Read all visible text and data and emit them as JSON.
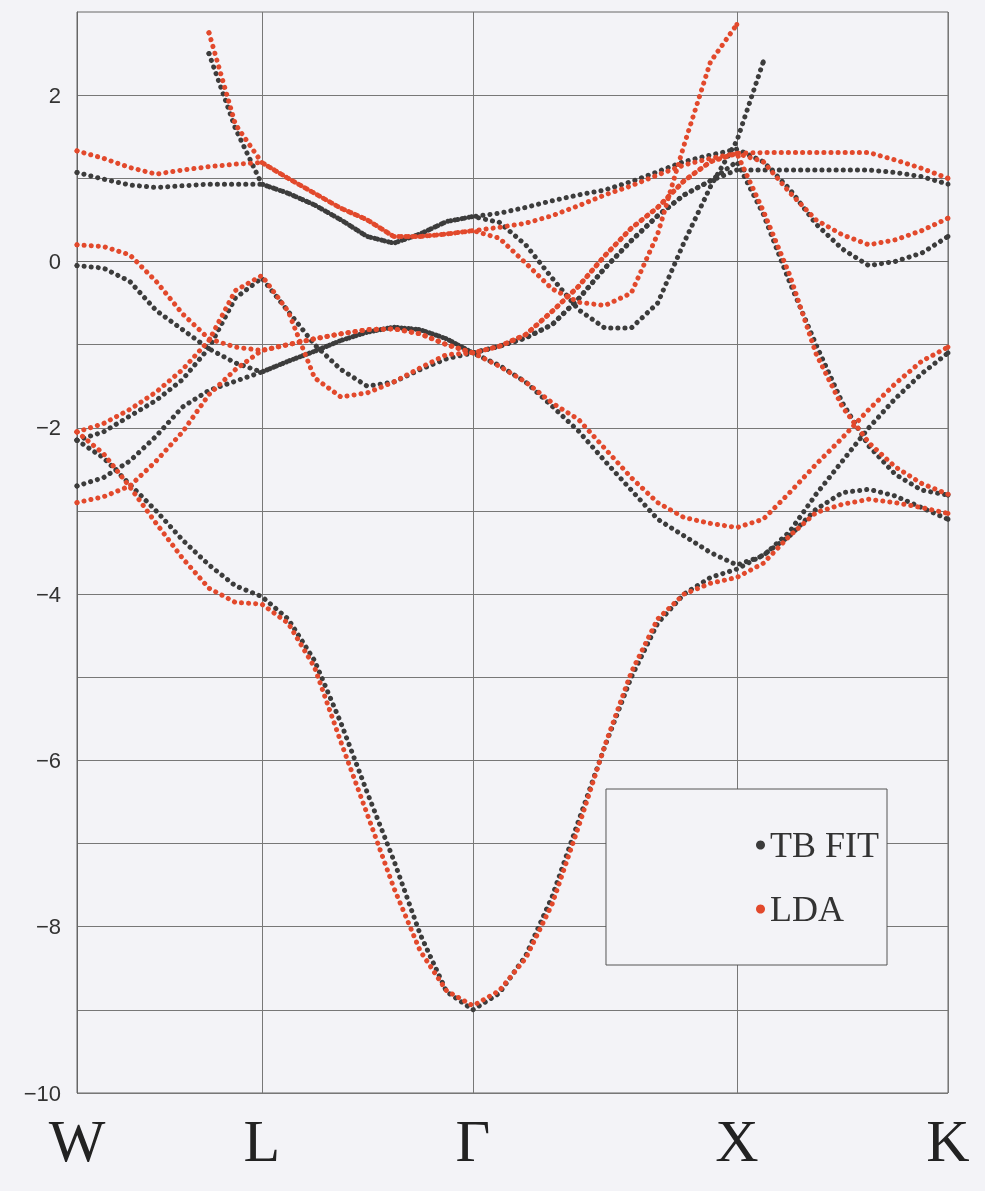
{
  "chart_data": {
    "type": "line",
    "marker": "none",
    "line_style": "dotted",
    "grid": true,
    "legend": "bottom right",
    "categories": [
      "W",
      null,
      null,
      null,
      null,
      null,
      null,
      "L",
      null,
      null,
      null,
      null,
      null,
      null,
      null,
      "Γ",
      null,
      null,
      null,
      null,
      null,
      null,
      null,
      null,
      null,
      "X",
      null,
      null,
      null,
      null,
      null,
      null,
      null,
      "K"
    ],
    "ylim": [
      -10,
      3
    ],
    "yticks": [
      {
        "value": -10,
        "label": "−10"
      },
      {
        "value": -9,
        "label": null
      },
      {
        "value": -8,
        "label": "−8"
      },
      {
        "value": -7,
        "label": null
      },
      {
        "value": -6,
        "label": "−6"
      },
      {
        "value": -5,
        "label": null
      },
      {
        "value": -4,
        "label": "−4"
      },
      {
        "value": -3,
        "label": null
      },
      {
        "value": -2,
        "label": "−2"
      },
      {
        "value": -1,
        "label": null
      },
      0,
      {
        "value": 1,
        "label": null
      },
      2
    ],
    "series": [
      {
        "name": "TB FIT",
        "color": "#3c3c3c",
        "values": [
          -2.15,
          -2.36,
          -2.68,
          -3.0,
          -3.35,
          -3.65,
          -3.9,
          -4.03,
          -4.3,
          -4.8,
          -5.55,
          -6.39,
          -7.2,
          -8.09,
          -8.78,
          -9.0,
          -8.8,
          -8.35,
          -7.64,
          -6.73,
          -5.83,
          -5.0,
          -4.35,
          -4.0,
          -3.8,
          -3.7,
          -3.53,
          -3.3,
          -2.98,
          -2.78,
          -2.74,
          -2.82,
          -2.96,
          -3.1
        ]
      },
      {
        "color": "#3c3c3c",
        "values": [
          -2.7,
          -2.6,
          -2.4,
          -2.1,
          -1.75,
          -1.55,
          -1.44,
          -1.33,
          -1.2,
          -1.08,
          -0.95,
          -0.85,
          -0.79,
          -0.82,
          -0.93,
          -1.1,
          -1.02,
          -0.92,
          -0.76,
          -0.45,
          -0.08,
          0.25,
          0.55,
          0.8,
          0.97,
          1.1,
          1.1,
          1.1,
          1.1,
          1.1,
          1.1,
          1.07,
          1.02,
          0.93
        ]
      },
      {
        "color": "#3c3c3c",
        "values": [
          -0.05,
          -0.08,
          -0.24,
          -0.59,
          -0.82,
          -1.05,
          -1.22,
          -1.33,
          -1.2,
          -1.08,
          -0.95,
          -0.85,
          -0.79,
          -0.82,
          -0.93,
          -1.1,
          -1.25,
          -1.45,
          -1.74,
          -2.04,
          -2.4,
          -2.75,
          -3.1,
          -3.3,
          -3.5,
          -3.65,
          -3.54,
          -3.25,
          -2.8,
          -2.4,
          -2.0,
          -1.65,
          -1.35,
          -1.1
        ]
      },
      {
        "color": "#3c3c3c",
        "values": [
          -2.15,
          -2.05,
          -1.86,
          -1.67,
          -1.42,
          -1.04,
          -0.44,
          -0.2,
          -0.6,
          -1.0,
          -1.3,
          -1.5,
          -1.45,
          -1.3,
          -1.17,
          -1.1,
          -1.02,
          -0.92,
          -0.76,
          -0.45,
          -0.08,
          0.25,
          0.55,
          0.8,
          0.97,
          1.2,
          0.57,
          -0.25,
          -1.0,
          -1.7,
          -2.22,
          -2.56,
          -2.75,
          -2.81
        ]
      },
      {
        "color": "#3c3c3c",
        "values": [
          1.07,
          0.99,
          0.92,
          0.89,
          0.91,
          0.93,
          0.93,
          0.93,
          0.82,
          0.68,
          0.5,
          0.3,
          0.22,
          0.33,
          0.48,
          0.54,
          0.58,
          0.65,
          0.73,
          0.8,
          0.86,
          0.96,
          1.08,
          1.2,
          1.28,
          1.35,
          1.2,
          0.87,
          0.45,
          0.15,
          -0.05,
          0.0,
          0.1,
          0.3
        ]
      },
      {
        "color": "#3c3c3c",
        "values": [
          null,
          null,
          null,
          null,
          null,
          2.5,
          1.6,
          0.93,
          0.82,
          0.68,
          0.5,
          0.3,
          0.22,
          0.33,
          0.48,
          0.54,
          0.47,
          0.2,
          -0.2,
          -0.58,
          -0.8,
          -0.8,
          -0.5,
          0.23,
          0.9,
          1.45,
          2.4,
          null,
          null,
          null,
          null,
          null,
          null,
          null
        ]
      },
      {
        "name": "LDA",
        "color": "#e2492c",
        "values": [
          -2.05,
          -2.31,
          -2.71,
          -3.15,
          -3.57,
          -3.93,
          -4.1,
          -4.12,
          -4.35,
          -4.88,
          -5.78,
          -6.65,
          -7.53,
          -8.29,
          -8.77,
          -8.95,
          -8.77,
          -8.38,
          -7.73,
          -6.8,
          -5.82,
          -4.94,
          -4.3,
          -4.0,
          -3.87,
          -3.8,
          -3.63,
          -3.3,
          -3.02,
          -2.92,
          -2.86,
          -2.9,
          -2.96,
          -3.03
        ]
      },
      {
        "color": "#e2492c",
        "values": [
          -2.9,
          -2.83,
          -2.7,
          -2.4,
          -2.05,
          -1.6,
          -1.3,
          -1.07,
          -1.0,
          -0.93,
          -0.87,
          -0.82,
          -0.81,
          -0.87,
          -1.0,
          -1.1,
          -1.02,
          -0.88,
          -0.6,
          -0.3,
          0.07,
          0.4,
          0.65,
          0.97,
          1.2,
          1.3,
          1.31,
          1.31,
          1.31,
          1.31,
          1.31,
          1.22,
          1.12,
          1.0
        ]
      },
      {
        "color": "#e2492c",
        "values": [
          0.2,
          0.18,
          0.08,
          -0.24,
          -0.63,
          -0.93,
          -1.03,
          -1.07,
          -1.0,
          -0.93,
          -0.87,
          -0.82,
          -0.81,
          -0.87,
          -1.0,
          -1.1,
          -1.26,
          -1.45,
          -1.7,
          -1.9,
          -2.25,
          -2.6,
          -2.9,
          -3.08,
          -3.15,
          -3.2,
          -3.1,
          -2.78,
          -2.44,
          -2.12,
          -1.78,
          -1.47,
          -1.2,
          -1.03
        ]
      },
      {
        "color": "#e2492c",
        "values": [
          -2.05,
          -1.95,
          -1.78,
          -1.57,
          -1.3,
          -0.95,
          -0.35,
          -0.17,
          -0.6,
          -1.4,
          -1.63,
          -1.58,
          -1.45,
          -1.28,
          -1.12,
          -1.1,
          -1.02,
          -0.88,
          -0.6,
          -0.3,
          0.07,
          0.4,
          0.65,
          0.97,
          1.2,
          1.3,
          0.61,
          -0.16,
          -1.11,
          -1.75,
          -2.18,
          -2.47,
          -2.67,
          -2.8
        ]
      },
      {
        "color": "#e2492c",
        "values": [
          1.33,
          1.24,
          1.13,
          1.05,
          1.1,
          1.14,
          1.17,
          1.19,
          1.0,
          0.82,
          0.64,
          0.5,
          0.3,
          0.3,
          0.33,
          0.37,
          0.41,
          0.46,
          0.55,
          0.67,
          0.8,
          0.91,
          1.04,
          1.16,
          1.24,
          1.3,
          1.2,
          0.83,
          0.5,
          0.32,
          0.2,
          0.26,
          0.37,
          0.52
        ]
      },
      {
        "color": "#e2492c",
        "values": [
          null,
          null,
          null,
          null,
          null,
          2.75,
          1.65,
          1.19,
          1.0,
          0.82,
          0.64,
          0.5,
          0.3,
          0.3,
          0.33,
          0.37,
          0.28,
          -0.02,
          -0.33,
          -0.49,
          -0.53,
          -0.38,
          0.33,
          1.4,
          2.4,
          2.85,
          null,
          null,
          null,
          null,
          null,
          null,
          null,
          null
        ]
      }
    ]
  }
}
